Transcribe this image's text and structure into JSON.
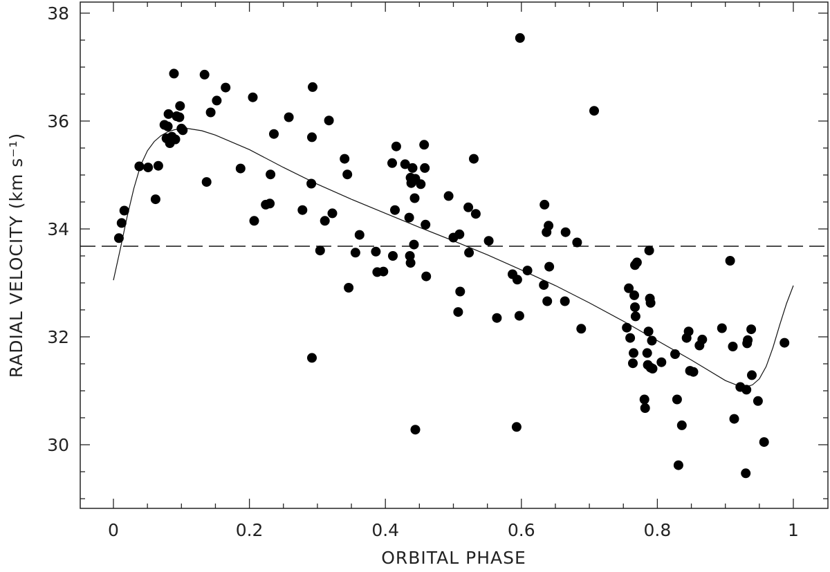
{
  "chart_data": {
    "type": "scatter",
    "xlabel": "ORBITAL PHASE",
    "ylabel": "RADIAL VELOCITY (km s⁻¹)",
    "xlim": [
      -0.048,
      1.044
    ],
    "ylim": [
      28.9,
      38.2
    ],
    "xticks": [
      0,
      0.2,
      0.4,
      0.6,
      0.8,
      1
    ],
    "xtick_labels": [
      "0",
      "0.2",
      "0.4",
      "0.6",
      "0.8",
      "1"
    ],
    "yticks": [
      30,
      32,
      34,
      36,
      38
    ],
    "ytick_labels": [
      "30",
      "32",
      "34",
      "36",
      "38"
    ],
    "systemic_velocity": 33.68,
    "grid": false,
    "series": [
      {
        "kind": "points",
        "points": [
          [
            0.008,
            33.83
          ],
          [
            0.012,
            34.11
          ],
          [
            0.016,
            34.34
          ],
          [
            0.038,
            35.16
          ],
          [
            0.051,
            35.14
          ],
          [
            0.062,
            34.55
          ],
          [
            0.066,
            35.17
          ],
          [
            0.075,
            35.93
          ],
          [
            0.078,
            35.68
          ],
          [
            0.08,
            35.9
          ],
          [
            0.081,
            36.13
          ],
          [
            0.083,
            35.59
          ],
          [
            0.086,
            35.71
          ],
          [
            0.089,
            36.88
          ],
          [
            0.091,
            35.66
          ],
          [
            0.093,
            36.09
          ],
          [
            0.097,
            36.07
          ],
          [
            0.098,
            36.28
          ],
          [
            0.1,
            35.86
          ],
          [
            0.102,
            35.83
          ],
          [
            0.134,
            36.86
          ],
          [
            0.137,
            34.87
          ],
          [
            0.143,
            36.16
          ],
          [
            0.152,
            36.38
          ],
          [
            0.165,
            36.62
          ],
          [
            0.187,
            35.12
          ],
          [
            0.205,
            36.44
          ],
          [
            0.207,
            34.15
          ],
          [
            0.224,
            34.45
          ],
          [
            0.23,
            34.47
          ],
          [
            0.231,
            35.01
          ],
          [
            0.236,
            35.76
          ],
          [
            0.258,
            36.07
          ],
          [
            0.278,
            34.35
          ],
          [
            0.291,
            34.84
          ],
          [
            0.292,
            35.7
          ],
          [
            0.293,
            36.63
          ],
          [
            0.292,
            31.61
          ],
          [
            0.304,
            33.6
          ],
          [
            0.311,
            34.15
          ],
          [
            0.317,
            36.01
          ],
          [
            0.322,
            34.29
          ],
          [
            0.34,
            35.3
          ],
          [
            0.344,
            35.01
          ],
          [
            0.346,
            32.91
          ],
          [
            0.362,
            33.89
          ],
          [
            0.356,
            33.56
          ],
          [
            0.386,
            33.58
          ],
          [
            0.388,
            33.2
          ],
          [
            0.397,
            33.21
          ],
          [
            0.41,
            35.22
          ],
          [
            0.411,
            33.5
          ],
          [
            0.414,
            34.35
          ],
          [
            0.416,
            35.53
          ],
          [
            0.429,
            35.2
          ],
          [
            0.435,
            34.21
          ],
          [
            0.436,
            33.5
          ],
          [
            0.437,
            34.95
          ],
          [
            0.437,
            33.37
          ],
          [
            0.438,
            34.85
          ],
          [
            0.44,
            35.13
          ],
          [
            0.442,
            33.71
          ],
          [
            0.443,
            34.57
          ],
          [
            0.444,
            34.93
          ],
          [
            0.444,
            30.28
          ],
          [
            0.452,
            34.83
          ],
          [
            0.457,
            35.56
          ],
          [
            0.458,
            35.13
          ],
          [
            0.459,
            34.08
          ],
          [
            0.46,
            33.12
          ],
          [
            0.493,
            34.61
          ],
          [
            0.5,
            33.84
          ],
          [
            0.507,
            32.46
          ],
          [
            0.509,
            33.9
          ],
          [
            0.51,
            32.84
          ],
          [
            0.522,
            34.4
          ],
          [
            0.523,
            33.56
          ],
          [
            0.53,
            35.3
          ],
          [
            0.533,
            34.28
          ],
          [
            0.552,
            33.78
          ],
          [
            0.564,
            32.35
          ],
          [
            0.587,
            33.16
          ],
          [
            0.593,
            30.33
          ],
          [
            0.594,
            33.06
          ],
          [
            0.597,
            32.39
          ],
          [
            0.598,
            37.54
          ],
          [
            0.609,
            33.23
          ],
          [
            0.633,
            32.96
          ],
          [
            0.634,
            34.45
          ],
          [
            0.637,
            33.94
          ],
          [
            0.638,
            32.66
          ],
          [
            0.64,
            34.06
          ],
          [
            0.641,
            33.3
          ],
          [
            0.665,
            33.94
          ],
          [
            0.664,
            32.66
          ],
          [
            0.682,
            33.75
          ],
          [
            0.688,
            32.15
          ],
          [
            0.707,
            36.19
          ],
          [
            0.755,
            32.17
          ],
          [
            0.758,
            32.9
          ],
          [
            0.76,
            31.98
          ],
          [
            0.764,
            31.51
          ],
          [
            0.765,
            31.7
          ],
          [
            0.766,
            32.77
          ],
          [
            0.767,
            33.33
          ],
          [
            0.767,
            32.55
          ],
          [
            0.768,
            32.38
          ],
          [
            0.77,
            33.38
          ],
          [
            0.781,
            30.84
          ],
          [
            0.782,
            30.68
          ],
          [
            0.785,
            31.7
          ],
          [
            0.786,
            31.48
          ],
          [
            0.787,
            32.1
          ],
          [
            0.788,
            33.6
          ],
          [
            0.789,
            32.71
          ],
          [
            0.79,
            32.63
          ],
          [
            0.79,
            31.43
          ],
          [
            0.792,
            31.93
          ],
          [
            0.793,
            31.41
          ],
          [
            0.806,
            31.53
          ],
          [
            0.826,
            31.68
          ],
          [
            0.829,
            30.84
          ],
          [
            0.831,
            29.62
          ],
          [
            0.836,
            30.36
          ],
          [
            0.843,
            31.98
          ],
          [
            0.846,
            32.1
          ],
          [
            0.848,
            31.37
          ],
          [
            0.853,
            31.35
          ],
          [
            0.862,
            31.84
          ],
          [
            0.866,
            31.95
          ],
          [
            0.895,
            32.16
          ],
          [
            0.907,
            33.41
          ],
          [
            0.911,
            31.82
          ],
          [
            0.913,
            30.48
          ],
          [
            0.922,
            31.07
          ],
          [
            0.93,
            29.47
          ],
          [
            0.931,
            31.02
          ],
          [
            0.932,
            31.88
          ],
          [
            0.933,
            31.94
          ],
          [
            0.938,
            32.14
          ],
          [
            0.939,
            31.29
          ],
          [
            0.948,
            30.81
          ],
          [
            0.957,
            30.05
          ],
          [
            0.987,
            31.89
          ]
        ]
      },
      {
        "kind": "fit-curve",
        "points": [
          [
            0.0,
            33.05
          ],
          [
            0.01,
            33.62
          ],
          [
            0.02,
            34.22
          ],
          [
            0.03,
            34.75
          ],
          [
            0.04,
            35.18
          ],
          [
            0.05,
            35.45
          ],
          [
            0.06,
            35.62
          ],
          [
            0.07,
            35.73
          ],
          [
            0.08,
            35.8
          ],
          [
            0.09,
            35.84
          ],
          [
            0.1,
            35.86
          ],
          [
            0.11,
            35.86
          ],
          [
            0.13,
            35.82
          ],
          [
            0.15,
            35.74
          ],
          [
            0.2,
            35.47
          ],
          [
            0.25,
            35.14
          ],
          [
            0.3,
            34.83
          ],
          [
            0.35,
            34.55
          ],
          [
            0.4,
            34.29
          ],
          [
            0.45,
            34.03
          ],
          [
            0.5,
            33.78
          ],
          [
            0.55,
            33.52
          ],
          [
            0.6,
            33.24
          ],
          [
            0.65,
            32.95
          ],
          [
            0.7,
            32.63
          ],
          [
            0.75,
            32.29
          ],
          [
            0.8,
            31.93
          ],
          [
            0.85,
            31.57
          ],
          [
            0.9,
            31.19
          ],
          [
            0.92,
            31.09
          ],
          [
            0.93,
            31.07
          ],
          [
            0.94,
            31.11
          ],
          [
            0.95,
            31.22
          ],
          [
            0.96,
            31.45
          ],
          [
            0.97,
            31.8
          ],
          [
            0.98,
            32.22
          ],
          [
            0.99,
            32.62
          ],
          [
            1.0,
            32.95
          ]
        ]
      }
    ]
  }
}
